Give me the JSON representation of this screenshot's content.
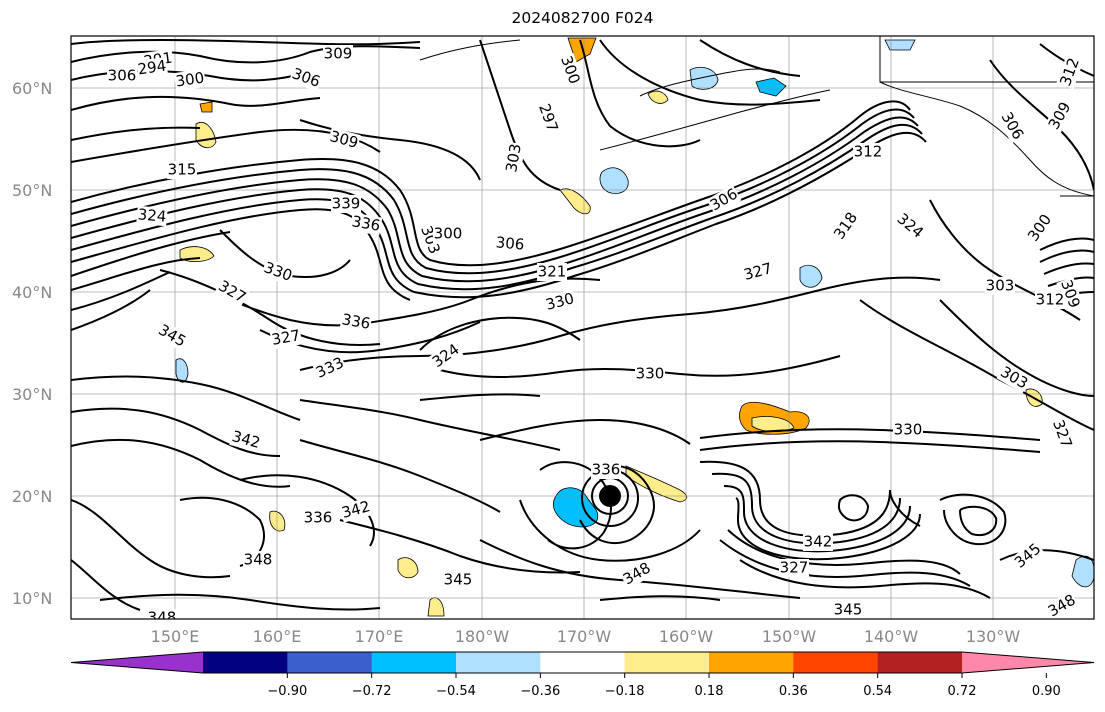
{
  "title": "2024082700 F024",
  "map": {
    "lat_labels": [
      "60°N",
      "50°N",
      "40°N",
      "30°N",
      "20°N",
      "10°N"
    ],
    "lon_labels": [
      "150°E",
      "160°E",
      "170°E",
      "180°W",
      "170°W",
      "160°W",
      "150°W",
      "140°W",
      "130°W"
    ],
    "grid": true
  },
  "contour_labels": [
    {
      "text": "291"
    },
    {
      "text": "294"
    },
    {
      "text": "300"
    },
    {
      "text": "306"
    },
    {
      "text": "309"
    },
    {
      "text": "306"
    },
    {
      "text": "300"
    },
    {
      "text": "297"
    },
    {
      "text": "303"
    },
    {
      "text": "309"
    },
    {
      "text": "315"
    },
    {
      "text": "324"
    },
    {
      "text": "339"
    },
    {
      "text": "336"
    },
    {
      "text": "303"
    },
    {
      "text": "300"
    },
    {
      "text": "306"
    },
    {
      "text": "321"
    },
    {
      "text": "330"
    },
    {
      "text": "330"
    },
    {
      "text": "327"
    },
    {
      "text": "336"
    },
    {
      "text": "327"
    },
    {
      "text": "333"
    },
    {
      "text": "324"
    },
    {
      "text": "327"
    },
    {
      "text": "345"
    },
    {
      "text": "342"
    },
    {
      "text": "336"
    },
    {
      "text": "342"
    },
    {
      "text": "348"
    },
    {
      "text": "345"
    },
    {
      "text": "348"
    },
    {
      "text": "348"
    },
    {
      "text": "345"
    },
    {
      "text": "330"
    },
    {
      "text": "336"
    },
    {
      "text": "342"
    },
    {
      "text": "327"
    },
    {
      "text": "345"
    },
    {
      "text": "348"
    },
    {
      "text": "312"
    },
    {
      "text": "318"
    },
    {
      "text": "324"
    },
    {
      "text": "300"
    },
    {
      "text": "303"
    },
    {
      "text": "306"
    },
    {
      "text": "309"
    },
    {
      "text": "312"
    },
    {
      "text": "309"
    },
    {
      "text": "303"
    },
    {
      "text": "312"
    },
    {
      "text": "327"
    },
    {
      "text": "330"
    },
    {
      "text": "306"
    }
  ],
  "colorbar": {
    "ticks": [
      "−0.90",
      "−0.72",
      "−0.54",
      "−0.36",
      "−0.18",
      "0.18",
      "0.36",
      "0.54",
      "0.72",
      "0.90"
    ],
    "colors": [
      "#9932cc",
      "#000080",
      "#3a5fcd",
      "#00bfff",
      "#b0e0ff",
      "#ffffff",
      "#ffec8b",
      "#ffa500",
      "#ff4500",
      "#b22222",
      "#ff88aa"
    ]
  }
}
